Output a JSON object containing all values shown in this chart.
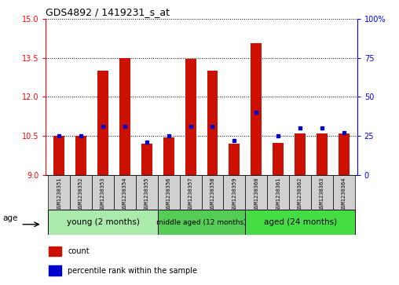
{
  "title": "GDS4892 / 1419231_s_at",
  "samples": [
    "GSM1230351",
    "GSM1230352",
    "GSM1230353",
    "GSM1230354",
    "GSM1230355",
    "GSM1230356",
    "GSM1230357",
    "GSM1230358",
    "GSM1230359",
    "GSM1230360",
    "GSM1230361",
    "GSM1230362",
    "GSM1230363",
    "GSM1230364"
  ],
  "count_values": [
    10.5,
    10.5,
    13.0,
    13.5,
    10.2,
    10.45,
    13.45,
    13.0,
    10.2,
    14.05,
    10.25,
    10.6,
    10.6,
    10.6
  ],
  "percentile_values": [
    25,
    25,
    31,
    31,
    21,
    25,
    31,
    31,
    22,
    40,
    25,
    30,
    30,
    27
  ],
  "y_min": 9,
  "y_max": 15,
  "y_ticks": [
    9,
    10.5,
    12,
    13.5,
    15
  ],
  "right_y_ticks": [
    0,
    25,
    50,
    75,
    100
  ],
  "right_y_labels": [
    "0",
    "25",
    "50",
    "75",
    "100%"
  ],
  "group_info": [
    {
      "label": "young (2 months)",
      "start": 0,
      "end": 5,
      "color": "#AAEAAA"
    },
    {
      "label": "middle aged (12 months)",
      "start": 5,
      "end": 9,
      "color": "#55CC55"
    },
    {
      "label": "aged (24 months)",
      "start": 9,
      "end": 14,
      "color": "#44DD44"
    }
  ],
  "bar_color": "#CC1100",
  "percentile_color": "#0000CC",
  "legend_count_label": "count",
  "legend_percentile_label": "percentile rank within the sample",
  "age_label": "age"
}
